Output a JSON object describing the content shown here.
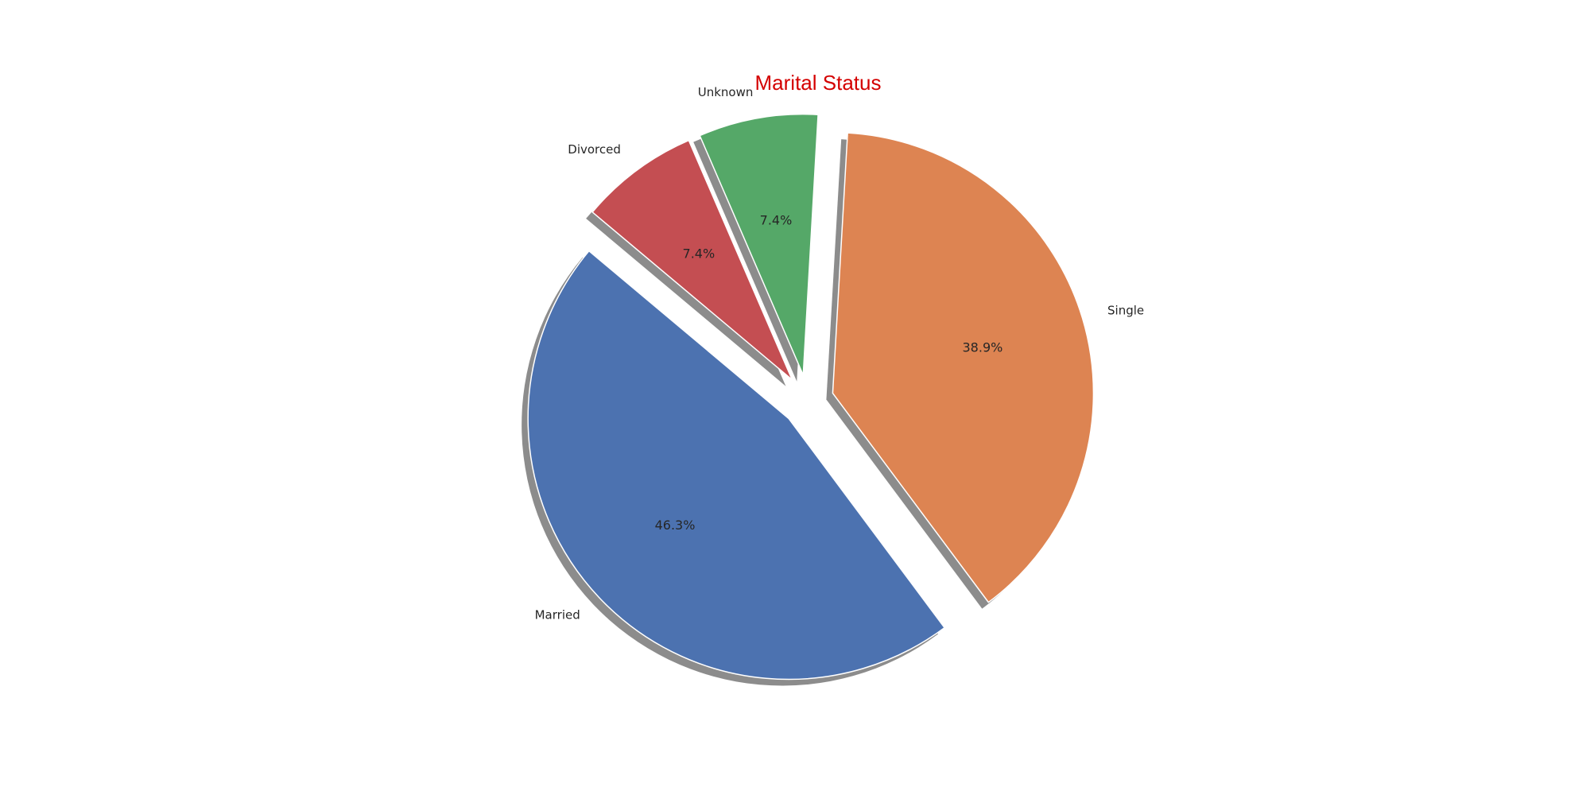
{
  "chart_data": {
    "type": "pie",
    "title": "Marital Status",
    "title_color": "#d40000",
    "categories": [
      "Married",
      "Single",
      "Unknown",
      "Divorced"
    ],
    "values": [
      46.3,
      38.9,
      7.4,
      7.4
    ],
    "percent_labels": [
      "46.3%",
      "38.9%",
      "7.4%",
      "7.4%"
    ],
    "colors": [
      "#4c72b0",
      "#dd8452",
      "#55a868",
      "#c44e52"
    ],
    "exploded": [
      0.1,
      0.1,
      0.1,
      0.1
    ],
    "start_angle_deg": 140,
    "direction": "counterclockwise",
    "shadow": true,
    "legend": "none"
  }
}
